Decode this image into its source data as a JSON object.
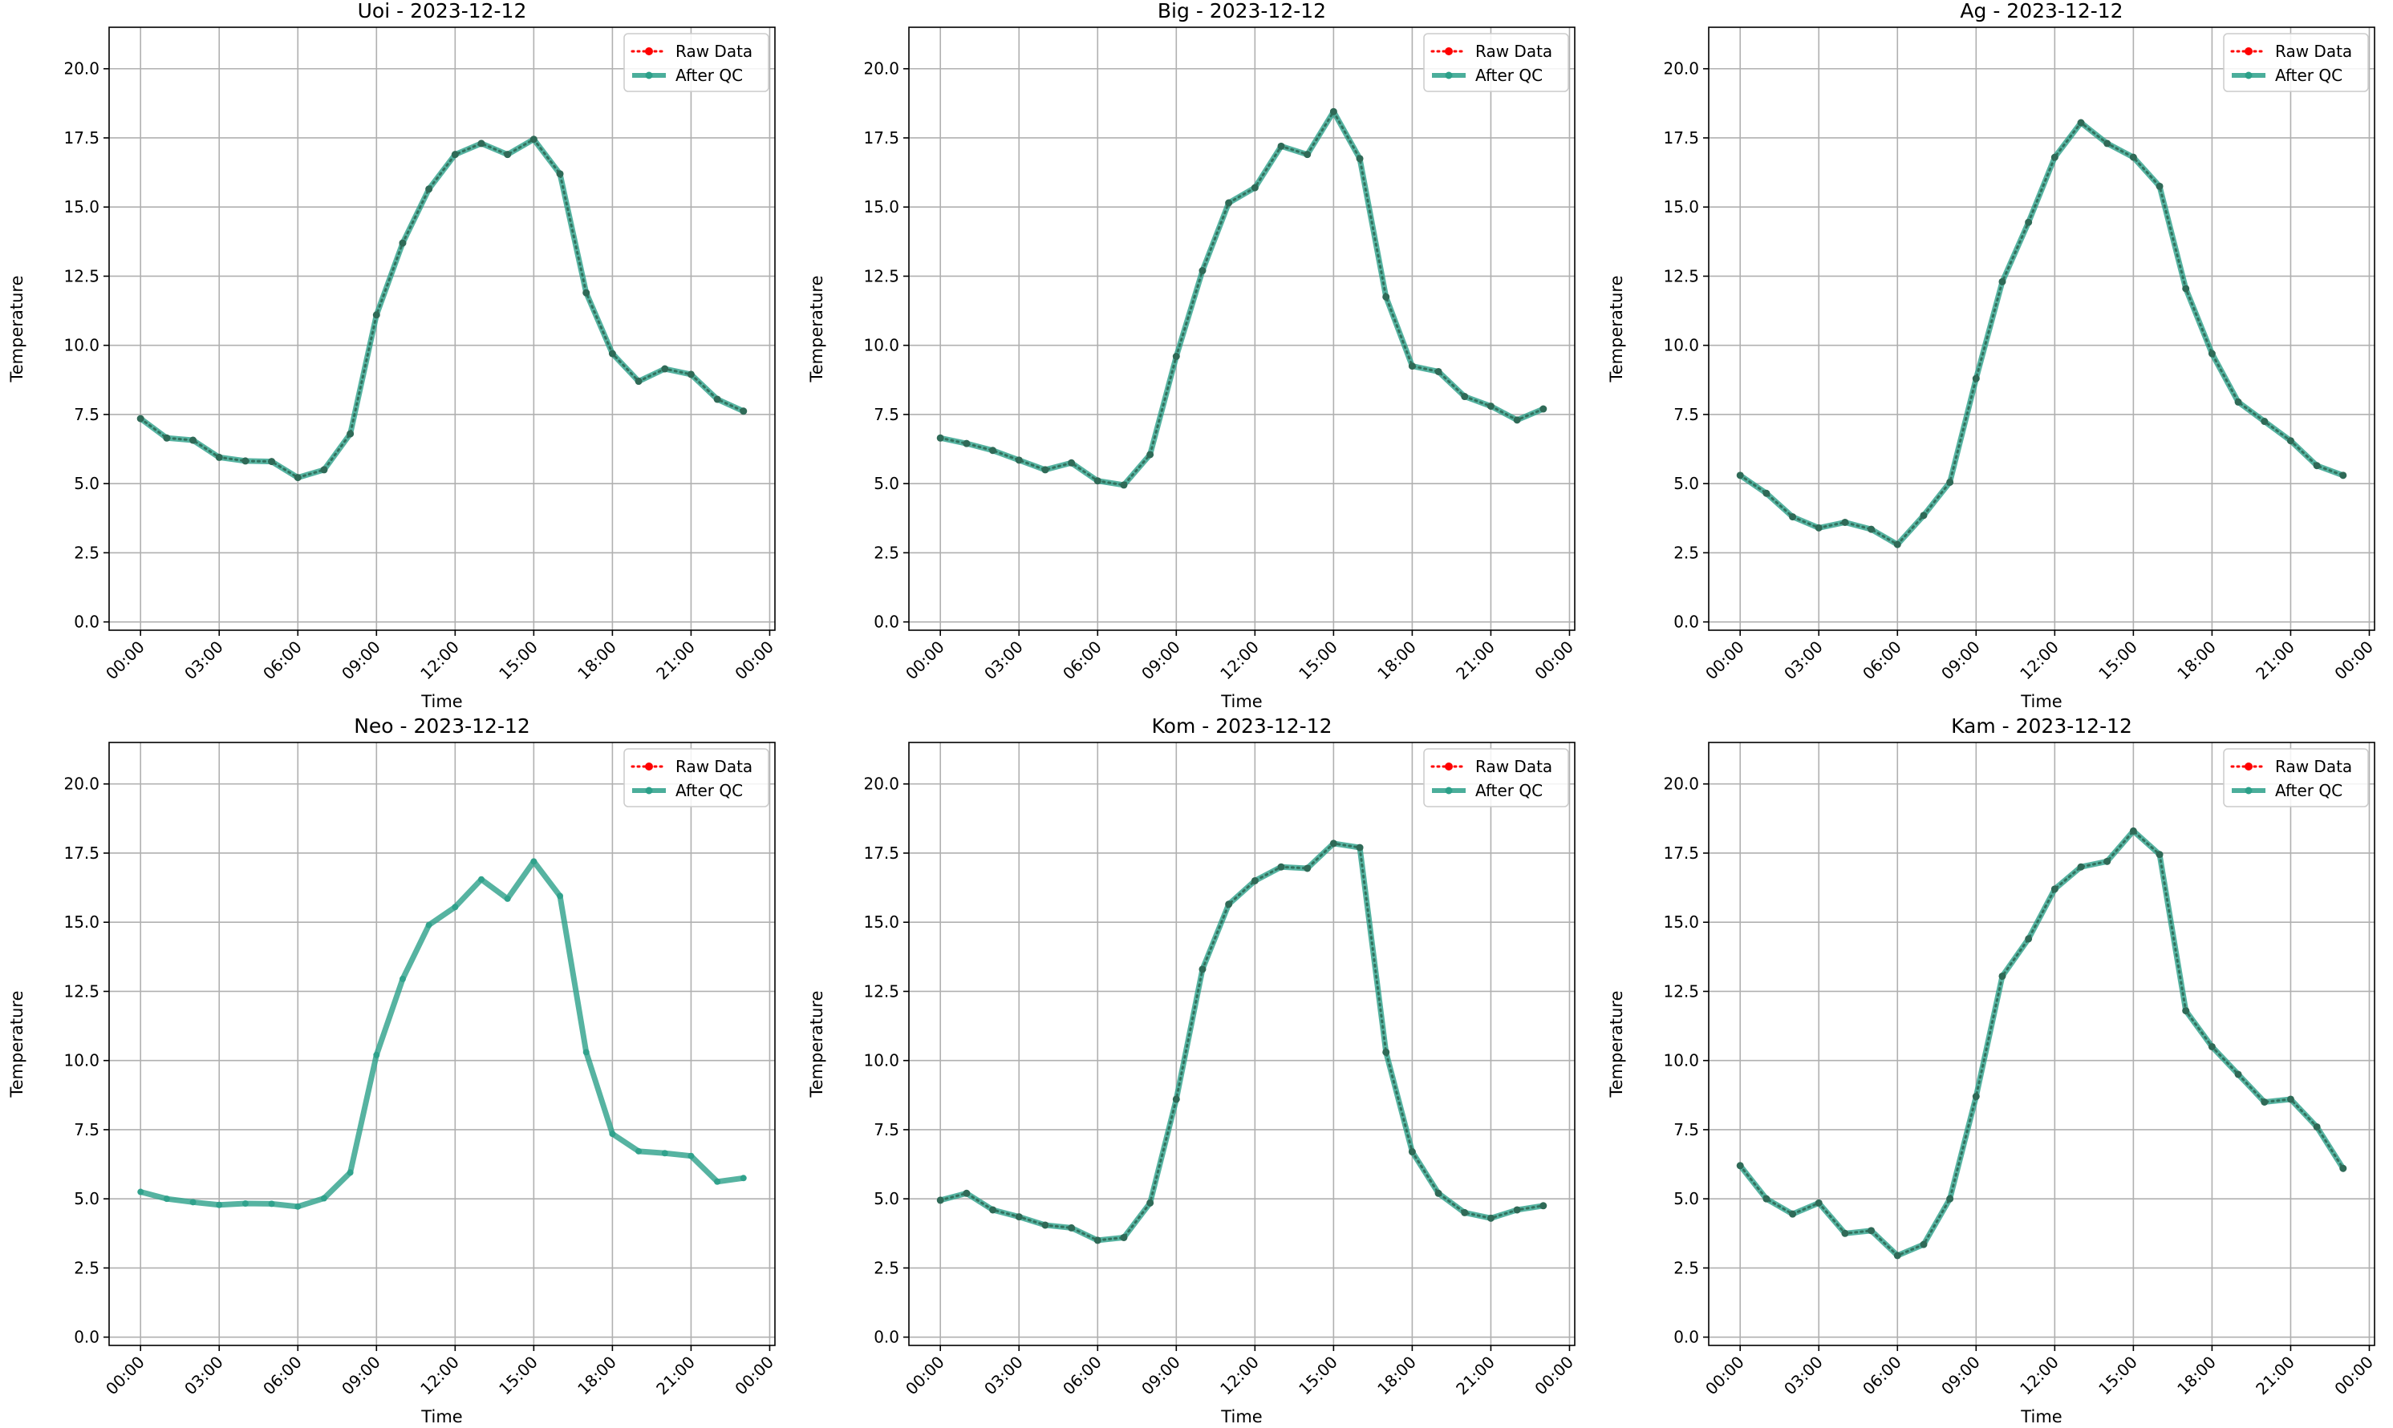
{
  "figure": {
    "legend_labels": [
      "Raw Data",
      "After QC"
    ],
    "colors": {
      "raw": "#ff0000",
      "qc": "#2ca089",
      "raw_marker": "#2f6a57"
    },
    "x_axis": {
      "label": "Time",
      "ticks": [
        "00:00",
        "03:00",
        "06:00",
        "09:00",
        "12:00",
        "15:00",
        "18:00",
        "21:00",
        "00:00"
      ],
      "range_hours": [
        -1.2,
        24.2
      ]
    },
    "y_axis": {
      "label": "Temperature",
      "ticks": [
        "0.0",
        "2.5",
        "5.0",
        "7.5",
        "10.0",
        "12.5",
        "15.0",
        "17.5",
        "20.0"
      ],
      "range": [
        -0.3,
        21.5
      ]
    }
  },
  "chart_data": [
    {
      "type": "line",
      "title": "Uoi - 2023-12-12",
      "xlabel": "Time",
      "ylabel": "Temperature",
      "ylim": [
        -0.3,
        21.5
      ],
      "grid": true,
      "legend": "top-right",
      "x_hours": [
        0,
        1,
        2,
        3,
        4,
        5,
        6,
        7,
        8,
        9,
        10,
        11,
        12,
        13,
        14,
        15,
        16,
        17,
        18,
        19,
        20,
        21,
        22,
        23
      ],
      "series": [
        {
          "name": "Raw Data",
          "values": [
            7.35,
            6.65,
            6.57,
            5.95,
            5.82,
            5.8,
            5.22,
            5.5,
            6.8,
            11.1,
            13.7,
            15.65,
            16.9,
            17.3,
            16.9,
            17.45,
            16.2,
            11.9,
            9.7,
            8.7,
            9.15,
            8.95,
            8.05,
            7.62
          ]
        },
        {
          "name": "After QC",
          "values": [
            7.35,
            6.65,
            6.57,
            5.95,
            5.82,
            5.8,
            5.22,
            5.5,
            6.8,
            11.1,
            13.7,
            15.65,
            16.9,
            17.3,
            16.9,
            17.45,
            16.2,
            11.9,
            9.7,
            8.7,
            9.15,
            8.95,
            8.05,
            7.62
          ]
        }
      ]
    },
    {
      "type": "line",
      "title": "Big - 2023-12-12",
      "xlabel": "Time",
      "ylabel": "Temperature",
      "ylim": [
        -0.3,
        21.5
      ],
      "grid": true,
      "legend": "top-right",
      "x_hours": [
        0,
        1,
        2,
        3,
        4,
        5,
        6,
        7,
        8,
        9,
        10,
        11,
        12,
        13,
        14,
        15,
        16,
        17,
        18,
        19,
        20,
        21,
        22,
        23
      ],
      "series": [
        {
          "name": "Raw Data",
          "values": [
            6.65,
            6.45,
            6.2,
            5.85,
            5.5,
            5.75,
            5.1,
            4.95,
            6.05,
            9.6,
            12.7,
            15.15,
            15.7,
            17.2,
            16.9,
            18.45,
            16.75,
            11.75,
            9.25,
            9.05,
            8.15,
            7.8,
            7.3,
            7.7
          ]
        },
        {
          "name": "After QC",
          "values": [
            6.65,
            6.45,
            6.2,
            5.85,
            5.5,
            5.75,
            5.1,
            4.95,
            6.05,
            9.6,
            12.7,
            15.15,
            15.7,
            17.2,
            16.9,
            18.45,
            16.75,
            11.75,
            9.25,
            9.05,
            8.15,
            7.8,
            7.3,
            7.7
          ]
        }
      ]
    },
    {
      "type": "line",
      "title": "Ag - 2023-12-12",
      "xlabel": "Time",
      "ylabel": "Temperature",
      "ylim": [
        -0.3,
        21.5
      ],
      "grid": true,
      "legend": "top-right",
      "x_hours": [
        0,
        1,
        2,
        3,
        4,
        5,
        6,
        7,
        8,
        9,
        10,
        11,
        12,
        13,
        14,
        15,
        16,
        17,
        18,
        19,
        20,
        21,
        22,
        23
      ],
      "series": [
        {
          "name": "Raw Data",
          "values": [
            5.3,
            4.65,
            3.8,
            3.4,
            3.6,
            3.35,
            2.8,
            3.85,
            5.05,
            8.8,
            12.3,
            14.45,
            16.8,
            18.05,
            17.3,
            16.8,
            15.75,
            12.05,
            9.7,
            7.95,
            7.25,
            6.55,
            5.65,
            5.3
          ]
        },
        {
          "name": "After QC",
          "values": [
            5.3,
            4.65,
            3.8,
            3.4,
            3.6,
            3.35,
            2.8,
            3.85,
            5.05,
            8.8,
            12.3,
            14.45,
            16.8,
            18.05,
            17.3,
            16.8,
            15.75,
            12.05,
            9.7,
            7.95,
            7.25,
            6.55,
            5.65,
            5.3
          ]
        }
      ]
    },
    {
      "type": "line",
      "title": "Neo - 2023-12-12",
      "xlabel": "Time",
      "ylabel": "Temperature",
      "ylim": [
        -0.3,
        21.5
      ],
      "grid": true,
      "legend": "top-right",
      "x_hours": [
        0,
        1,
        2,
        3,
        4,
        5,
        6,
        7,
        8,
        9,
        10,
        11,
        12,
        13,
        14,
        15,
        16,
        17,
        18,
        19,
        20,
        21,
        22,
        23
      ],
      "series": [
        {
          "name": "Raw Data",
          "values": []
        },
        {
          "name": "After QC",
          "values": [
            5.25,
            5.0,
            4.88,
            4.78,
            4.83,
            4.82,
            4.72,
            5.02,
            5.95,
            10.2,
            12.95,
            14.9,
            15.55,
            16.55,
            15.85,
            17.2,
            15.95,
            10.3,
            7.35,
            6.72,
            6.65,
            6.55,
            5.62,
            5.75
          ]
        }
      ]
    },
    {
      "type": "line",
      "title": "Kom - 2023-12-12",
      "xlabel": "Time",
      "ylabel": "Temperature",
      "ylim": [
        -0.3,
        21.5
      ],
      "grid": true,
      "legend": "top-right",
      "x_hours": [
        0,
        1,
        2,
        3,
        4,
        5,
        6,
        7,
        8,
        9,
        10,
        11,
        12,
        13,
        14,
        15,
        16,
        17,
        18,
        19,
        20,
        21,
        22,
        23
      ],
      "series": [
        {
          "name": "Raw Data",
          "values": [
            4.95,
            5.2,
            4.6,
            4.35,
            4.05,
            3.95,
            3.5,
            3.6,
            4.85,
            8.6,
            13.3,
            15.65,
            16.5,
            17.0,
            16.95,
            17.85,
            17.7,
            10.3,
            6.7,
            5.2,
            4.5,
            4.3,
            4.6,
            4.75
          ]
        },
        {
          "name": "After QC",
          "values": [
            4.95,
            5.2,
            4.6,
            4.35,
            4.05,
            3.95,
            3.5,
            3.6,
            4.85,
            8.6,
            13.3,
            15.65,
            16.5,
            17.0,
            16.95,
            17.85,
            17.7,
            10.3,
            6.7,
            5.2,
            4.5,
            4.3,
            4.6,
            4.75
          ]
        }
      ]
    },
    {
      "type": "line",
      "title": "Kam - 2023-12-12",
      "xlabel": "Time",
      "ylabel": "Temperature",
      "ylim": [
        -0.3,
        21.5
      ],
      "grid": true,
      "legend": "top-right",
      "x_hours": [
        0,
        1,
        2,
        3,
        4,
        5,
        6,
        7,
        8,
        9,
        10,
        11,
        12,
        13,
        14,
        15,
        16,
        17,
        18,
        19,
        20,
        21,
        22,
        23
      ],
      "series": [
        {
          "name": "Raw Data",
          "values": [
            6.2,
            5.0,
            4.45,
            4.85,
            3.75,
            3.85,
            2.95,
            3.35,
            5.0,
            8.7,
            13.05,
            14.4,
            16.2,
            17.0,
            17.2,
            18.3,
            17.45,
            11.8,
            10.5,
            9.5,
            8.5,
            8.6,
            7.6,
            6.1
          ]
        },
        {
          "name": "After QC",
          "values": [
            6.2,
            5.0,
            4.45,
            4.85,
            3.75,
            3.85,
            2.95,
            3.35,
            5.0,
            8.7,
            13.05,
            14.4,
            16.2,
            17.0,
            17.2,
            18.3,
            17.45,
            11.8,
            10.5,
            9.5,
            8.5,
            8.6,
            7.6,
            6.1
          ]
        }
      ]
    }
  ]
}
